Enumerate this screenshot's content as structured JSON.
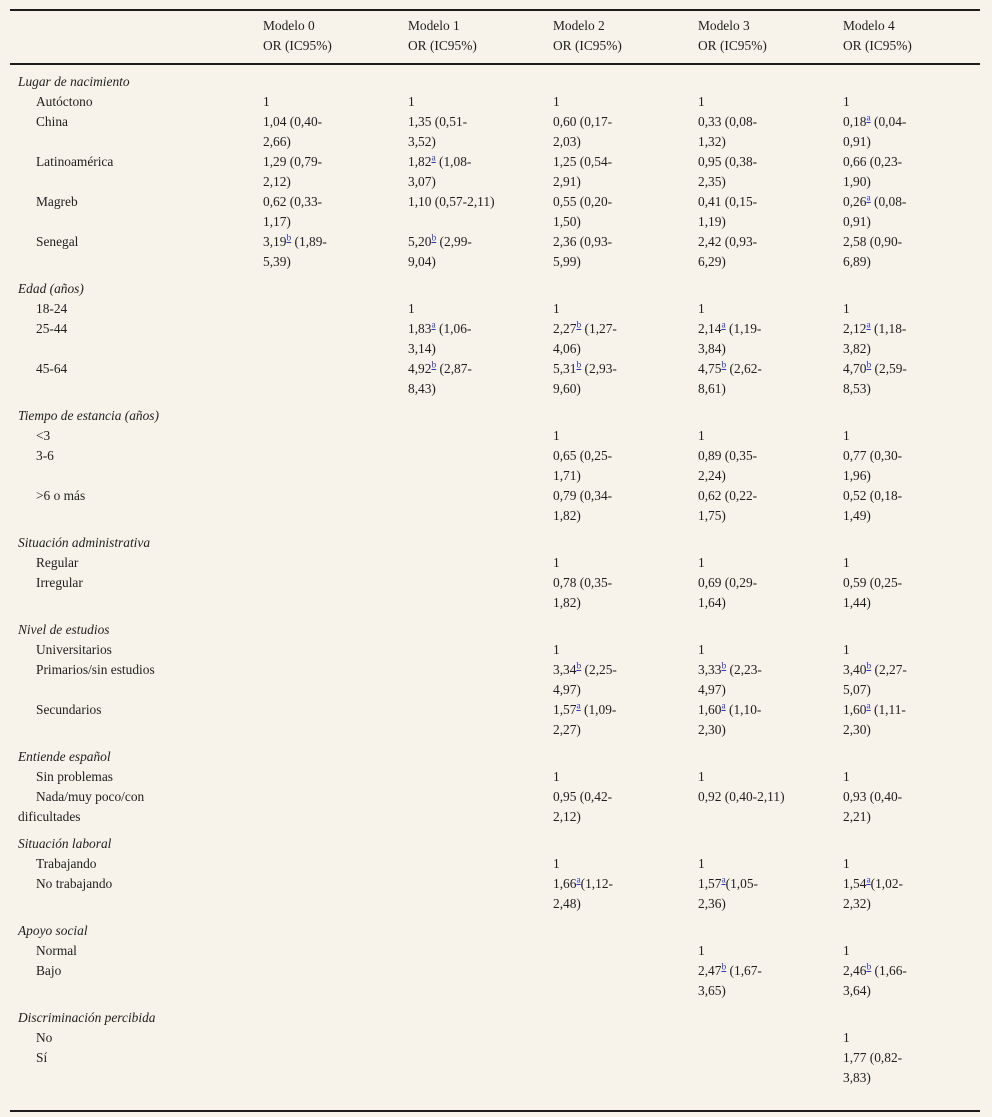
{
  "colors": {
    "page_background": "#f7f3ea",
    "text": "#1e1e1e",
    "rule": "#1c1c1c",
    "footnote_link": "#2b35cd"
  },
  "table": {
    "columns": [
      {
        "label": "Modelo 0",
        "sublabel": "OR (IC95%)"
      },
      {
        "label": "Modelo 1",
        "sublabel": "OR (IC95%)"
      },
      {
        "label": "Modelo 2",
        "sublabel": "OR (IC95%)"
      },
      {
        "label": "Modelo 3",
        "sublabel": "OR (IC95%)"
      },
      {
        "label": "Modelo 4",
        "sublabel": "OR (IC95%)"
      }
    ],
    "rows": [
      {
        "type": "category",
        "label": "Lugar de nacimiento",
        "cells": [
          [],
          [],
          [],
          [],
          []
        ]
      },
      {
        "type": "item",
        "label": "Autóctono",
        "cells": [
          [
            {
              "t": "1"
            }
          ],
          [
            {
              "t": "1"
            }
          ],
          [
            {
              "t": "1"
            }
          ],
          [
            {
              "t": "1"
            }
          ],
          [
            {
              "t": "1"
            }
          ]
        ]
      },
      {
        "type": "item",
        "label": "China",
        "cells": [
          [
            {
              "t": "1,04 (0,40-2,66)"
            }
          ],
          [
            {
              "t": "1,35 (0,51-3,52)"
            }
          ],
          [
            {
              "t": "0,60 (0,17-2,03)"
            }
          ],
          [
            {
              "t": "0,33 (0,08-1,32)"
            }
          ],
          [
            {
              "t": "0,18"
            },
            {
              "s": "a"
            },
            {
              "t": " (0,04-0,91)"
            }
          ]
        ]
      },
      {
        "type": "item",
        "label": "Latinoamérica",
        "cells": [
          [
            {
              "t": "1,29 (0,79-2,12)"
            }
          ],
          [
            {
              "t": "1,82"
            },
            {
              "s": "a"
            },
            {
              "t": " (1,08-3,07)"
            }
          ],
          [
            {
              "t": "1,25 (0,54-2,91)"
            }
          ],
          [
            {
              "t": "0,95 (0,38-2,35)"
            }
          ],
          [
            {
              "t": "0,66 (0,23-1,90)"
            }
          ]
        ]
      },
      {
        "type": "item",
        "label": "Magreb",
        "cells": [
          [
            {
              "t": "0,62 (0,33-1,17)"
            }
          ],
          [
            {
              "t": "1,10 (0,57-2,11)"
            }
          ],
          [
            {
              "t": "0,55 (0,20-1,50)"
            }
          ],
          [
            {
              "t": "0,41 (0,15-1,19)"
            }
          ],
          [
            {
              "t": "0,26"
            },
            {
              "s": "a"
            },
            {
              "t": " (0,08-0,91)"
            }
          ]
        ]
      },
      {
        "type": "item",
        "label": "Senegal",
        "cells": [
          [
            {
              "t": "3,19"
            },
            {
              "s": "b"
            },
            {
              "t": " (1,89-5,39)"
            }
          ],
          [
            {
              "t": "5,20"
            },
            {
              "s": "b"
            },
            {
              "t": " (2,99-9,04)"
            }
          ],
          [
            {
              "t": "2,36 (0,93-5,99)"
            }
          ],
          [
            {
              "t": "2,42 (0,93-6,29)"
            }
          ],
          [
            {
              "t": "2,58 (0,90-6,89)"
            }
          ]
        ]
      },
      {
        "type": "category",
        "label": "Edad (años)",
        "cells": [
          [],
          [],
          [],
          [],
          []
        ]
      },
      {
        "type": "item",
        "label": "18-24",
        "cells": [
          [],
          [
            {
              "t": "1"
            }
          ],
          [
            {
              "t": "1"
            }
          ],
          [
            {
              "t": "1"
            }
          ],
          [
            {
              "t": "1"
            }
          ]
        ]
      },
      {
        "type": "item",
        "label": "25-44",
        "cells": [
          [],
          [
            {
              "t": "1,83"
            },
            {
              "s": "a"
            },
            {
              "t": " (1,06-3,14)"
            }
          ],
          [
            {
              "t": "2,27"
            },
            {
              "s": "b"
            },
            {
              "t": " (1,27-4,06)"
            }
          ],
          [
            {
              "t": "2,14"
            },
            {
              "s": "a"
            },
            {
              "t": " (1,19-3,84)"
            }
          ],
          [
            {
              "t": "2,12"
            },
            {
              "s": "a"
            },
            {
              "t": " (1,18-3,82)"
            }
          ]
        ]
      },
      {
        "type": "item",
        "label": "45-64",
        "cells": [
          [],
          [
            {
              "t": "4,92"
            },
            {
              "s": "b"
            },
            {
              "t": " (2,87-8,43)"
            }
          ],
          [
            {
              "t": "5,31"
            },
            {
              "s": "b"
            },
            {
              "t": " (2,93-9,60)"
            }
          ],
          [
            {
              "t": "4,75"
            },
            {
              "s": "b"
            },
            {
              "t": " (2,62-8,61)"
            }
          ],
          [
            {
              "t": "4,70"
            },
            {
              "s": "b"
            },
            {
              "t": " (2,59-8,53)"
            }
          ]
        ]
      },
      {
        "type": "category",
        "label": "Tiempo de estancia (años)",
        "cells": [
          [],
          [],
          [],
          [],
          []
        ]
      },
      {
        "type": "item",
        "label": "<3",
        "cells": [
          [],
          [],
          [
            {
              "t": "1"
            }
          ],
          [
            {
              "t": "1"
            }
          ],
          [
            {
              "t": "1"
            }
          ]
        ]
      },
      {
        "type": "item",
        "label": "3-6",
        "cells": [
          [],
          [],
          [
            {
              "t": "0,65 (0,25-1,71)"
            }
          ],
          [
            {
              "t": "0,89 (0,35-2,24)"
            }
          ],
          [
            {
              "t": "0,77 (0,30-1,96)"
            }
          ]
        ]
      },
      {
        "type": "item",
        "label": ">6 o más",
        "cells": [
          [],
          [],
          [
            {
              "t": "0,79 (0,34-1,82)"
            }
          ],
          [
            {
              "t": "0,62 (0,22-1,75)"
            }
          ],
          [
            {
              "t": "0,52 (0,18-1,49)"
            }
          ]
        ]
      },
      {
        "type": "category",
        "label": "Situación administrativa",
        "cells": [
          [],
          [],
          [],
          [],
          []
        ]
      },
      {
        "type": "item",
        "label": "Regular",
        "cells": [
          [],
          [],
          [
            {
              "t": "1"
            }
          ],
          [
            {
              "t": "1"
            }
          ],
          [
            {
              "t": "1"
            }
          ]
        ]
      },
      {
        "type": "item",
        "label": "Irregular",
        "cells": [
          [],
          [],
          [
            {
              "t": "0,78 (0,35-1,82)"
            }
          ],
          [
            {
              "t": "0,69 (0,29-1,64)"
            }
          ],
          [
            {
              "t": "0,59 (0,25-1,44)"
            }
          ]
        ]
      },
      {
        "type": "category",
        "label": "Nivel de estudios",
        "cells": [
          [],
          [],
          [],
          [],
          []
        ]
      },
      {
        "type": "item",
        "label": "Universitarios",
        "cells": [
          [],
          [],
          [
            {
              "t": "1"
            }
          ],
          [
            {
              "t": "1"
            }
          ],
          [
            {
              "t": "1"
            }
          ]
        ]
      },
      {
        "type": "item",
        "label": "Primarios/sin estudios",
        "cells": [
          [],
          [],
          [
            {
              "t": "3,34"
            },
            {
              "s": "b"
            },
            {
              "t": " (2,25-4,97)"
            }
          ],
          [
            {
              "t": "3,33"
            },
            {
              "s": "b"
            },
            {
              "t": " (2,23-4,97)"
            }
          ],
          [
            {
              "t": "3,40"
            },
            {
              "s": "b"
            },
            {
              "t": " (2,27-5,07)"
            }
          ]
        ]
      },
      {
        "type": "item",
        "label": "Secundarios",
        "cells": [
          [],
          [],
          [
            {
              "t": "1,57"
            },
            {
              "s": "a"
            },
            {
              "t": " (1,09-2,27)"
            }
          ],
          [
            {
              "t": "1,60"
            },
            {
              "s": "a"
            },
            {
              "t": " (1,10-2,30)"
            }
          ],
          [
            {
              "t": "1,60"
            },
            {
              "s": "a"
            },
            {
              "t": " (1,11-2,30)"
            }
          ]
        ]
      },
      {
        "type": "category",
        "label": "Entiende español",
        "cells": [
          [],
          [],
          [],
          [],
          []
        ]
      },
      {
        "type": "item",
        "label": "Sin problemas",
        "cells": [
          [],
          [],
          [
            {
              "t": "1"
            }
          ],
          [
            {
              "t": "1"
            }
          ],
          [
            {
              "t": "1"
            }
          ]
        ]
      },
      {
        "type": "item",
        "label": "Nada/muy poco/con dificultades",
        "cells": [
          [],
          [],
          [
            {
              "t": "0,95 (0,42-2,12)"
            }
          ],
          [
            {
              "t": "0,92 (0,40-2,11)"
            }
          ],
          [
            {
              "t": "0,93 (0,40-2,21)"
            }
          ]
        ]
      },
      {
        "type": "category",
        "label": "Situación laboral",
        "cells": [
          [],
          [],
          [],
          [],
          []
        ]
      },
      {
        "type": "item",
        "label": "Trabajando",
        "cells": [
          [],
          [],
          [
            {
              "t": "1"
            }
          ],
          [
            {
              "t": "1"
            }
          ],
          [
            {
              "t": "1"
            }
          ]
        ]
      },
      {
        "type": "item",
        "label": "No trabajando",
        "cells": [
          [],
          [],
          [
            {
              "t": "1,66"
            },
            {
              "s": "a"
            },
            {
              "t": "(1,12-2,48)"
            }
          ],
          [
            {
              "t": "1,57"
            },
            {
              "s": "a"
            },
            {
              "t": "(1,05-2,36)"
            }
          ],
          [
            {
              "t": "1,54"
            },
            {
              "s": "a"
            },
            {
              "t": "(1,02-2,32)"
            }
          ]
        ]
      },
      {
        "type": "category",
        "label": "Apoyo social",
        "cells": [
          [],
          [],
          [],
          [],
          []
        ]
      },
      {
        "type": "item",
        "label": "Normal",
        "cells": [
          [],
          [],
          [],
          [
            {
              "t": "1"
            }
          ],
          [
            {
              "t": "1"
            }
          ]
        ]
      },
      {
        "type": "item",
        "label": "Bajo",
        "cells": [
          [],
          [],
          [],
          [
            {
              "t": "2,47"
            },
            {
              "s": "b"
            },
            {
              "t": " (1,67-3,65)"
            }
          ],
          [
            {
              "t": "2,46"
            },
            {
              "s": "b"
            },
            {
              "t": " (1,66-3,64)"
            }
          ]
        ]
      },
      {
        "type": "category",
        "label": "Discriminación percibida",
        "cells": [
          [],
          [],
          [],
          [],
          []
        ]
      },
      {
        "type": "item",
        "label": "No",
        "cells": [
          [],
          [],
          [],
          [],
          [
            {
              "t": "1"
            }
          ]
        ]
      },
      {
        "type": "item",
        "label": "Sí",
        "cells": [
          [],
          [],
          [],
          [],
          [
            {
              "t": "1,77 (0,82-3,83)"
            }
          ]
        ]
      }
    ]
  }
}
